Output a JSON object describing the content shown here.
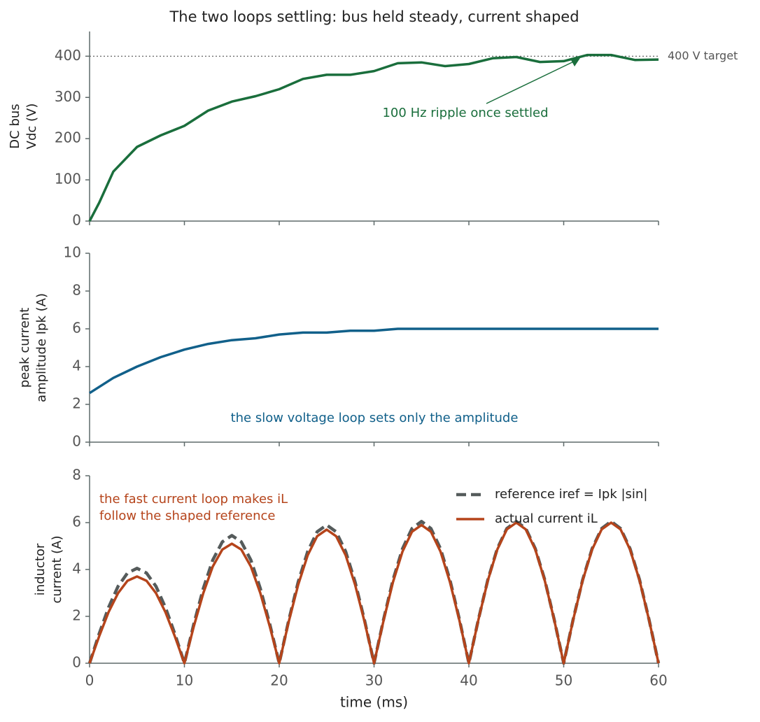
{
  "chart_data": [
    {
      "type": "line",
      "title": "The two loops settling: bus held steady, current shaped",
      "ylabel": [
        "DC bus",
        "Vdc  (V)"
      ],
      "x": [
        0,
        1,
        2.5,
        5,
        7.5,
        10,
        12.5,
        15,
        17.5,
        20,
        22.5,
        25,
        27.5,
        30,
        32.5,
        35,
        37.5,
        40,
        42.5,
        45,
        47.5,
        50,
        52.5,
        55,
        57.5,
        60
      ],
      "series": [
        {
          "name": "DC bus voltage",
          "color": "#1a6e3c",
          "values": [
            0,
            44,
            120,
            180,
            208,
            231,
            268,
            290,
            303,
            320,
            345,
            355,
            355,
            364,
            383,
            385,
            376,
            381,
            395,
            398,
            386,
            388,
            403,
            403,
            391,
            392
          ]
        }
      ],
      "hline": {
        "value": 400,
        "label": "400 V target"
      },
      "annotation": "100 Hz ripple once settled",
      "xlim": [
        0,
        60
      ],
      "xticks": [
        0,
        10,
        20,
        30,
        40,
        50,
        60
      ],
      "show_xtick_labels": false,
      "ylim": [
        0,
        460
      ],
      "yticks": [
        0,
        100,
        200,
        300,
        400
      ]
    },
    {
      "type": "line",
      "ylabel": [
        "peak current",
        "amplitude Ipk  (A)"
      ],
      "x": [
        0,
        2.5,
        5,
        7.5,
        10,
        12.5,
        15,
        17.5,
        20,
        22.5,
        25,
        27.5,
        30,
        32.5,
        35,
        37.5,
        40,
        42.5,
        45,
        47.5,
        50,
        52.5,
        55,
        57.5,
        60
      ],
      "series": [
        {
          "name": "peak current amplitude",
          "color": "#11608a",
          "values": [
            2.6,
            3.4,
            4.0,
            4.5,
            4.9,
            5.2,
            5.4,
            5.5,
            5.7,
            5.8,
            5.8,
            5.9,
            5.9,
            6.0,
            6.0,
            6.0,
            6.0,
            6.0,
            6.0,
            6.0,
            6.0,
            6.0,
            6.0,
            6.0,
            6.0
          ]
        }
      ],
      "annotation": "the slow voltage loop sets only the amplitude",
      "xlim": [
        0,
        60
      ],
      "xticks": [
        0,
        10,
        20,
        30,
        40,
        50,
        60
      ],
      "show_xtick_labels": false,
      "ylim": [
        0,
        10
      ],
      "yticks": [
        0,
        2,
        4,
        6,
        8,
        10
      ]
    },
    {
      "type": "line",
      "ylabel": [
        "inductor",
        "current  (A)"
      ],
      "xlabel": "time  (ms)",
      "x": [
        0,
        1,
        2,
        3,
        4,
        5,
        6,
        7,
        8,
        9,
        10,
        11,
        12,
        13,
        14,
        15,
        16,
        17,
        18,
        19,
        20,
        21,
        22,
        23,
        24,
        25,
        26,
        27,
        28,
        29,
        30,
        31,
        32,
        33,
        34,
        35,
        36,
        37,
        38,
        39,
        40,
        41,
        42,
        43,
        44,
        45,
        46,
        47,
        48,
        49,
        50,
        51,
        52,
        53,
        54,
        55,
        56,
        57,
        58,
        59,
        60
      ],
      "series": [
        {
          "name": "reference iref = Ipk |sin|",
          "color": "#555b5b",
          "dashed": true,
          "values": [
            0,
            1.25,
            2.38,
            3.28,
            3.85,
            4.05,
            3.85,
            3.28,
            2.38,
            1.25,
            0,
            1.68,
            3.2,
            4.41,
            5.18,
            5.45,
            5.18,
            4.41,
            3.2,
            1.68,
            0,
            1.82,
            3.47,
            4.77,
            5.61,
            5.9,
            5.61,
            4.77,
            3.47,
            1.82,
            0,
            1.87,
            3.56,
            4.89,
            5.75,
            6.05,
            5.75,
            4.89,
            3.56,
            1.87,
            0,
            1.87,
            3.56,
            4.89,
            5.75,
            6.05,
            5.75,
            4.89,
            3.56,
            1.87,
            0,
            1.87,
            3.56,
            4.89,
            5.75,
            6.05,
            5.75,
            4.89,
            3.56,
            1.87,
            0
          ]
        },
        {
          "name": "actual current iL",
          "color": "#b5441b",
          "dashed": false,
          "values": [
            0,
            1.14,
            2.18,
            2.99,
            3.52,
            3.7,
            3.52,
            2.99,
            2.18,
            1.14,
            0,
            1.58,
            3.0,
            4.13,
            4.85,
            5.1,
            4.85,
            4.13,
            3.0,
            1.58,
            0,
            1.76,
            3.35,
            4.61,
            5.42,
            5.7,
            5.42,
            4.61,
            3.35,
            1.76,
            0,
            1.82,
            3.47,
            4.77,
            5.61,
            5.9,
            5.61,
            4.77,
            3.47,
            1.82,
            0,
            1.85,
            3.53,
            4.85,
            5.71,
            6.0,
            5.71,
            4.85,
            3.53,
            1.85,
            0,
            1.85,
            3.53,
            4.85,
            5.71,
            6.0,
            5.71,
            4.85,
            3.53,
            1.85,
            0
          ]
        }
      ],
      "annotation": [
        "the fast current loop makes iL",
        "follow the shaped reference"
      ],
      "annotation_color": "#b5441b",
      "legend": "upper right",
      "xlim": [
        0,
        60
      ],
      "xticks": [
        0,
        10,
        20,
        30,
        40,
        50,
        60
      ],
      "show_xtick_labels": true,
      "ylim": [
        0,
        8
      ],
      "yticks": [
        0,
        2,
        4,
        6,
        8
      ]
    }
  ]
}
